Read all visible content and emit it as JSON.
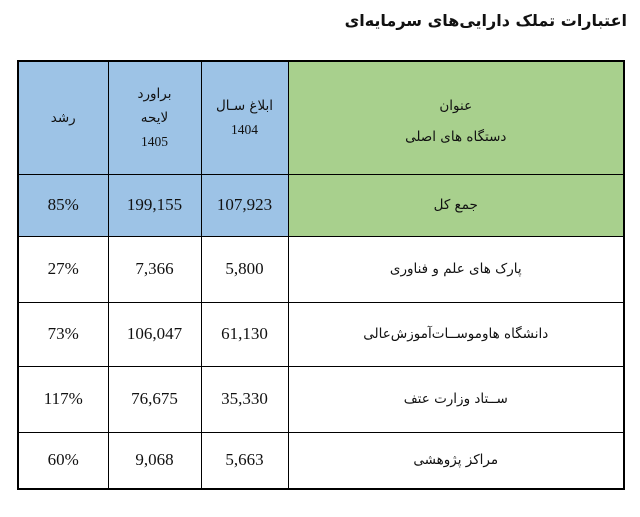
{
  "title": "اعتبارات تملک دارایی‌های سرمایه‌ای",
  "colors": {
    "header_green": "#A8D08D",
    "header_blue": "#9DC3E6",
    "border": "#000000",
    "page_background": "#FFFFFF"
  },
  "table": {
    "header": {
      "name_line1": "عنوان",
      "name_line2": "دستگاه های اصلی",
      "y1404_line1": "ابلاغ سـال",
      "y1404_line2": "1404",
      "y1405_line1": "براورد",
      "y1405_line2": "لایحه",
      "y1405_line3": "1405",
      "growth": "رشد"
    },
    "rows": [
      {
        "name": "جمع کل",
        "y1404": "107,923",
        "y1405": "199,155",
        "growth": "85%"
      },
      {
        "name": "پارک های علم و فناوری",
        "y1404": "5,800",
        "y1405": "7,366",
        "growth": "27%"
      },
      {
        "name": "دانشگاه هاوموســات‌آموزش‌عالی",
        "y1404": "61,130",
        "y1405": "106,047",
        "growth": "73%"
      },
      {
        "name": "ســتاد وزارت عتف",
        "y1404": "35,330",
        "y1405": "76,675",
        "growth": "117%"
      },
      {
        "name": "مراکز پژوهشی",
        "y1404": "5,663",
        "y1405": "9,068",
        "growth": "60%"
      }
    ]
  },
  "chart_data": {
    "type": "table",
    "title": "اعتبارات تملک دارایی‌های سرمایه‌ای",
    "columns": [
      "عنوان دستگاه های اصلی",
      "ابلاغ سال 1404",
      "براورد لایحه 1405",
      "رشد"
    ],
    "rows": [
      [
        "جمع کل",
        107923,
        199155,
        "85%"
      ],
      [
        "پارک های علم و فناوری",
        5800,
        7366,
        "27%"
      ],
      [
        "دانشگاه ها و موسسات آموزش عالی",
        61130,
        106047,
        "73%"
      ],
      [
        "ستاد وزارت عتف",
        35330,
        76675,
        "117%"
      ],
      [
        "مراکز پژوهشی",
        5663,
        9068,
        "60%"
      ]
    ]
  }
}
